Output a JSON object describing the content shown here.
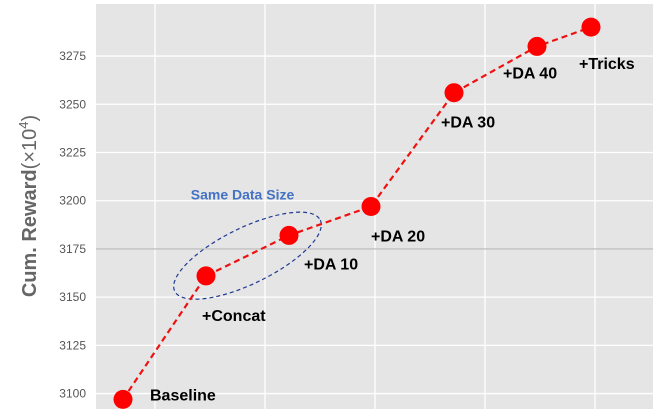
{
  "chart_data": {
    "type": "line",
    "ylabel_main": "Cum. Reward",
    "ylabel_unit_prefix": "(×10",
    "ylabel_unit_exp": "4",
    "ylabel_unit_suffix": ")",
    "ylim": [
      3092,
      3302
    ],
    "yticks": [
      3100,
      3125,
      3150,
      3175,
      3200,
      3225,
      3250,
      3275
    ],
    "ytick_labels": [
      "3100",
      "3125",
      "3150",
      "3175",
      "3200",
      "3225",
      "3250",
      "3275"
    ],
    "grid": true,
    "highlight_line_y": 3175,
    "points": [
      {
        "label": "Baseline",
        "value": 3097
      },
      {
        "label": "+Concat",
        "value": 3161
      },
      {
        "label": "+DA 10",
        "value": 3182
      },
      {
        "label": "+DA 20",
        "value": 3197
      },
      {
        "label": "+DA 30",
        "value": 3256
      },
      {
        "label": "+DA 40",
        "value": 3280
      },
      {
        "label": "+Tricks",
        "value": 3290
      }
    ],
    "group_annotation": {
      "text": "Same Data Size",
      "covers": [
        "+Concat",
        "+DA 10"
      ]
    },
    "colors": {
      "background": "#e5e5e5",
      "grid": "#ffffff",
      "highlight_line": "#b3b3b3",
      "line": "#ee1111",
      "marker": "#ff0000",
      "ellipse": "#1f3a93",
      "group_label": "#4472c4"
    }
  }
}
